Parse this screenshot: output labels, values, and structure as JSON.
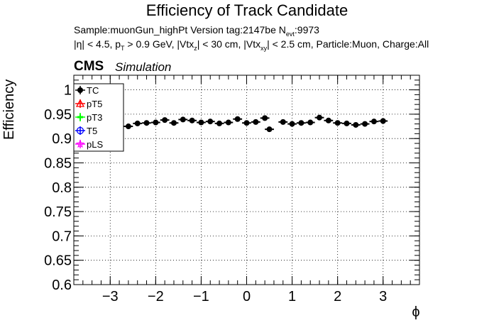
{
  "header": {
    "title": "Efficiency of Track Candidate",
    "line1_prefix": "Sample:muonGun_highPt   Version tag:2147be  N",
    "line1_sub": "evt",
    "line1_suffix": ":9973",
    "line2_a": "|η| < 4.5, p",
    "line2_a_sub": "T",
    "line2_b": " > 0.9 GeV, |Vtx",
    "line2_b_sub": "z",
    "line2_c": "| < 30 cm, |Vtx",
    "line2_c_sub": "xy",
    "line2_d": "| < 2.5 cm, Particle:Muon, Charge:All",
    "cms": "CMS",
    "simulation": "Simulation"
  },
  "chart_data": {
    "type": "scatter",
    "title": "Efficiency of Track Candidate",
    "xlabel": "ϕ",
    "ylabel": "Efficiency",
    "xlim": [
      -3.8,
      3.8
    ],
    "ylim": [
      0.6,
      1.03
    ],
    "xticks": [
      -3,
      -2,
      -1,
      0,
      1,
      2,
      3
    ],
    "xtick_labels": [
      "−3",
      "−2",
      "−1",
      "0",
      "1",
      "2",
      "3"
    ],
    "yticks": [
      0.6,
      0.65,
      0.7,
      0.75,
      0.8,
      0.85,
      0.9,
      0.95,
      1
    ],
    "ytick_labels": [
      "0.6",
      "0.65",
      "0.7",
      "0.75",
      "0.8",
      "0.85",
      "0.9",
      "0.95",
      "1"
    ],
    "grid": true,
    "legend_position": "top-left",
    "bin_half_width": 0.1,
    "series": [
      {
        "name": "TC",
        "color": "#000000",
        "marker": "filled-circle",
        "x": [
          -2.6,
          -2.4,
          -2.2,
          -2.0,
          -1.8,
          -1.6,
          -1.4,
          -1.2,
          -1.0,
          -0.8,
          -0.6,
          -0.4,
          -0.2,
          0.0,
          0.2,
          0.4,
          0.5,
          0.8,
          1.0,
          1.2,
          1.4,
          1.6,
          1.8,
          2.0,
          2.2,
          2.4,
          2.6,
          2.8,
          3.0
        ],
        "values": [
          0.925,
          0.931,
          0.932,
          0.933,
          0.938,
          0.932,
          0.939,
          0.937,
          0.933,
          0.935,
          0.931,
          0.933,
          0.94,
          0.932,
          0.934,
          0.942,
          0.919,
          0.934,
          0.93,
          0.932,
          0.933,
          0.943,
          0.937,
          0.932,
          0.931,
          0.928,
          0.93,
          0.935,
          0.936
        ]
      },
      {
        "name": "pT5",
        "color": "#ff0000",
        "marker": "open-triangle",
        "x": [],
        "values": []
      },
      {
        "name": "pT3",
        "color": "#00ff00",
        "marker": "cross",
        "x": [],
        "values": []
      },
      {
        "name": "T5",
        "color": "#0000ff",
        "marker": "open-circle",
        "x": [],
        "values": []
      },
      {
        "name": "pLS",
        "color": "#ff00ff",
        "marker": "star",
        "x": [],
        "values": []
      }
    ]
  }
}
